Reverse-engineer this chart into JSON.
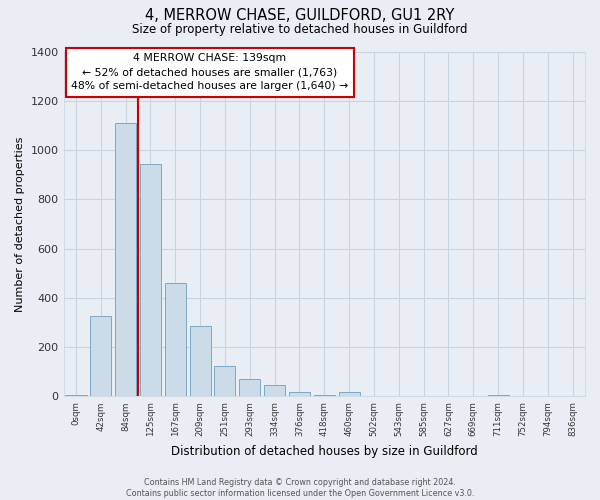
{
  "title": "4, MERROW CHASE, GUILDFORD, GU1 2RY",
  "subtitle": "Size of property relative to detached houses in Guildford",
  "xlabel": "Distribution of detached houses by size in Guildford",
  "ylabel": "Number of detached properties",
  "bar_labels": [
    "0sqm",
    "42sqm",
    "84sqm",
    "125sqm",
    "167sqm",
    "209sqm",
    "251sqm",
    "293sqm",
    "334sqm",
    "376sqm",
    "418sqm",
    "460sqm",
    "502sqm",
    "543sqm",
    "585sqm",
    "627sqm",
    "669sqm",
    "711sqm",
    "752sqm",
    "794sqm",
    "836sqm"
  ],
  "bar_values": [
    5,
    325,
    1110,
    945,
    460,
    285,
    125,
    70,
    45,
    20,
    5,
    20,
    0,
    0,
    0,
    0,
    0,
    5,
    0,
    0,
    0
  ],
  "bar_color": "#ccdbe8",
  "bar_edge_color": "#7aaac8",
  "vline_x": 2.5,
  "vline_color": "#cc0000",
  "ylim": [
    0,
    1400
  ],
  "yticks": [
    0,
    200,
    400,
    600,
    800,
    1000,
    1200,
    1400
  ],
  "annotation_title": "4 MERROW CHASE: 139sqm",
  "annotation_line1": "← 52% of detached houses are smaller (1,763)",
  "annotation_line2": "48% of semi-detached houses are larger (1,640) →",
  "annotation_box_facecolor": "#ffffff",
  "annotation_box_edge": "#cc0000",
  "footer1": "Contains HM Land Registry data © Crown copyright and database right 2024.",
  "footer2": "Contains public sector information licensed under the Open Government Licence v3.0.",
  "bg_color": "#e8eef4",
  "plot_bg_color": "#e8eef4",
  "grid_color": "#c8d4e0"
}
